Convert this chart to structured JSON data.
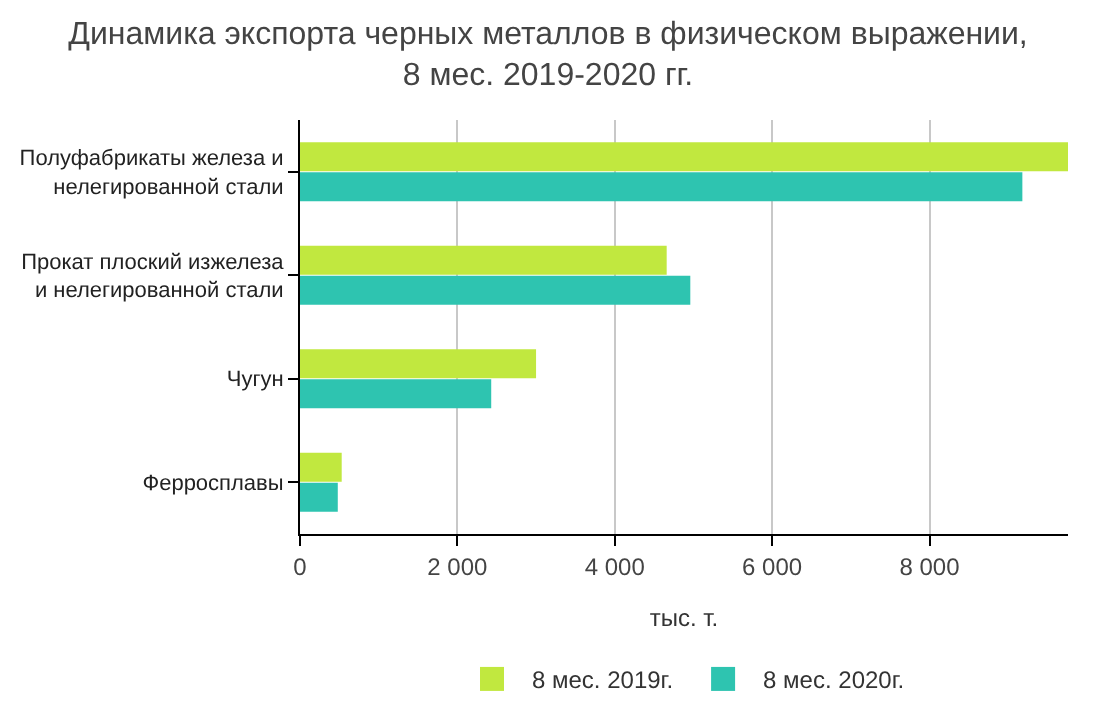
{
  "chart_data": {
    "type": "bar",
    "orientation": "horizontal",
    "title": "Динамика экспорта черных металлов в физическом выражении, 8 мес. 2019-2020 гг.",
    "xlabel": "тыс. т.",
    "categories": [
      "Полуфабрикаты железа и нелегированной стали",
      "Прокат плоский изжелеза и нелегированной стали",
      "Чугун",
      "Ферросплавы"
    ],
    "series": [
      {
        "name": "8 мес. 2019г.",
        "color": "#c1e83f",
        "values": [
          9760,
          4660,
          3000,
          530
        ]
      },
      {
        "name": "8 мес. 2020г.",
        "color": "#2ec4b0",
        "values": [
          9180,
          4960,
          2430,
          480
        ]
      }
    ],
    "xlim": [
      0,
      9760
    ],
    "xticks": [
      0,
      {
        "value": 2000,
        "label": "2 000"
      },
      {
        "value": 4000,
        "label": "4 000"
      },
      {
        "value": 6000,
        "label": "6 000"
      },
      {
        "value": 8000,
        "label": "8 000"
      }
    ],
    "grid": "x",
    "legend": "bottom"
  }
}
